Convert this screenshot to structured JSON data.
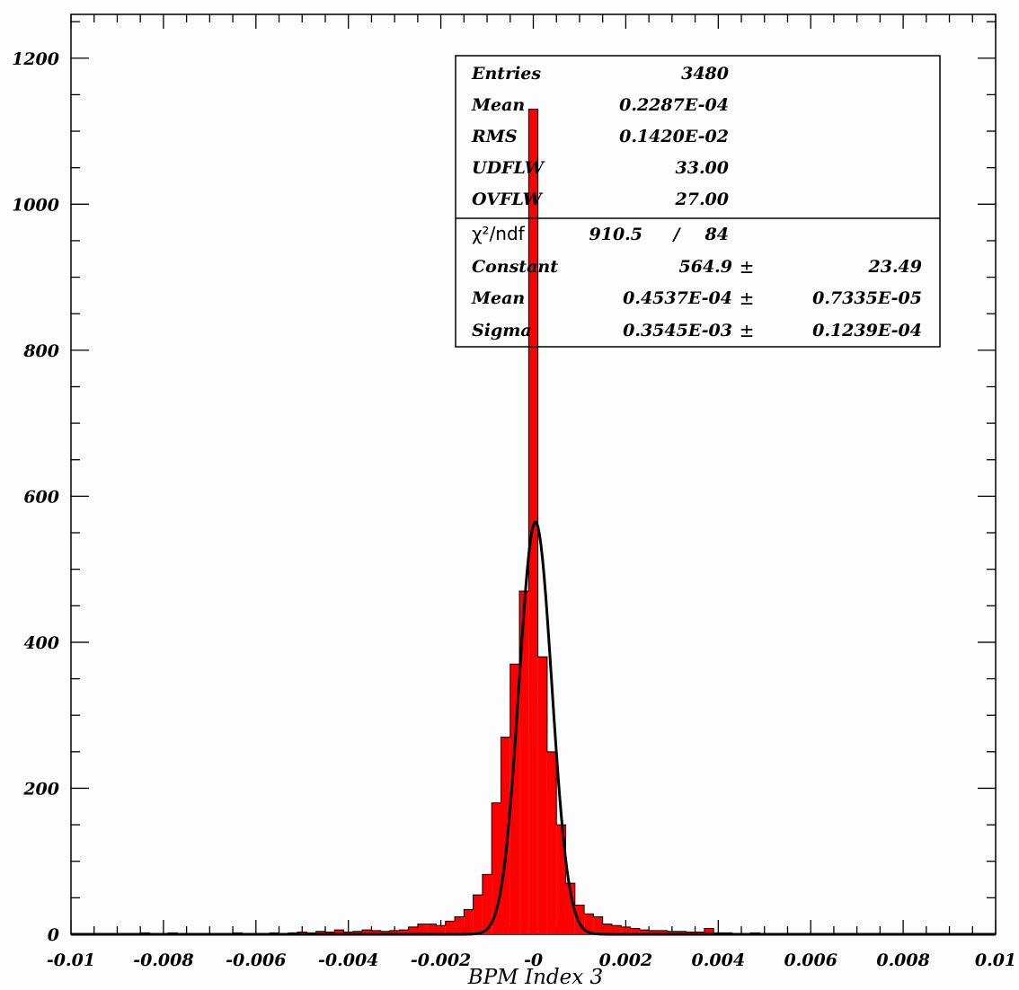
{
  "chart_data": {
    "type": "bar",
    "xlabel": "BPM Index 3",
    "ylabel": "",
    "xlim": [
      -0.01,
      0.01
    ],
    "ylim": [
      0,
      1260
    ],
    "x_ticks": [
      {
        "value": -0.01,
        "label": "-0.01"
      },
      {
        "value": -0.008,
        "label": "-0.008"
      },
      {
        "value": -0.006,
        "label": "-0.006"
      },
      {
        "value": -0.004,
        "label": "-0.004"
      },
      {
        "value": -0.002,
        "label": "-0.002"
      },
      {
        "value": 0,
        "label": "-0"
      },
      {
        "value": 0.002,
        "label": "0.002"
      },
      {
        "value": 0.004,
        "label": "0.004"
      },
      {
        "value": 0.006,
        "label": "0.006"
      },
      {
        "value": 0.008,
        "label": "0.008"
      },
      {
        "value": 0.01,
        "label": "0.01"
      }
    ],
    "y_ticks": [
      {
        "value": 0,
        "label": "0"
      },
      {
        "value": 200,
        "label": "200"
      },
      {
        "value": 400,
        "label": "400"
      },
      {
        "value": 600,
        "label": "600"
      },
      {
        "value": 800,
        "label": "800"
      },
      {
        "value": 1000,
        "label": "1000"
      },
      {
        "value": 1200,
        "label": "1200"
      }
    ],
    "bin_width": 0.0002,
    "bins_x": [
      -0.0098,
      -0.0096,
      -0.0094,
      -0.0092,
      -0.009,
      -0.0088,
      -0.0086,
      -0.0084,
      -0.0082,
      -0.008,
      -0.0078,
      -0.0076,
      -0.0074,
      -0.0072,
      -0.007,
      -0.0068,
      -0.0066,
      -0.0064,
      -0.0062,
      -0.006,
      -0.0058,
      -0.0056,
      -0.0054,
      -0.0052,
      -0.005,
      -0.0048,
      -0.0046,
      -0.0044,
      -0.0042,
      -0.004,
      -0.0038,
      -0.0036,
      -0.0034,
      -0.0032,
      -0.003,
      -0.0028,
      -0.0026,
      -0.0024,
      -0.0022,
      -0.002,
      -0.0018,
      -0.0016,
      -0.0014,
      -0.0012,
      -0.001,
      -0.0008,
      -0.0006,
      -0.0004,
      -0.0002,
      0,
      0.0002,
      0.0004,
      0.0006,
      0.0008,
      0.001,
      0.0012,
      0.0014,
      0.0016,
      0.0018,
      0.002,
      0.0022,
      0.0024,
      0.0026,
      0.0028,
      0.003,
      0.0032,
      0.0034,
      0.0036,
      0.0038,
      0.004,
      0.0042,
      0.0044,
      0.0046,
      0.0048,
      0.005,
      0.0052,
      0.0054,
      0.0056,
      0.0058,
      0.006,
      0.0062,
      0.0064,
      0.0066,
      0.0068,
      0.007,
      0.0072,
      0.0074,
      0.0076,
      0.0078,
      0.008,
      0.0082,
      0.0084,
      0.0086,
      0.0088,
      0.009,
      0.0092,
      0.0094,
      0.0096,
      0.0098
    ],
    "bins_y": [
      1,
      0,
      1,
      0,
      0,
      1,
      0,
      2,
      0,
      1,
      2,
      0,
      1,
      1,
      0,
      1,
      0,
      2,
      1,
      1,
      0,
      2,
      1,
      2,
      3,
      2,
      4,
      3,
      6,
      3,
      4,
      6,
      5,
      4,
      5,
      6,
      10,
      14,
      14,
      12,
      18,
      24,
      34,
      54,
      82,
      180,
      270,
      370,
      470,
      1130,
      380,
      250,
      150,
      70,
      40,
      28,
      24,
      14,
      12,
      10,
      8,
      6,
      5,
      5,
      4,
      4,
      3,
      3,
      8,
      2,
      2,
      1,
      1,
      2,
      1,
      1,
      0,
      1,
      0,
      1,
      1,
      0,
      0,
      1,
      0,
      1,
      0,
      0,
      1,
      0,
      0,
      1,
      0,
      0,
      0,
      1,
      0,
      0,
      1
    ],
    "series": [
      {
        "name": "",
        "type": "histogram",
        "color": "#ff0000",
        "edge_color": "#000000"
      },
      {
        "name": "",
        "type": "gaussian-fit",
        "color": "#000000"
      }
    ],
    "fit": {
      "constant": 564.9,
      "mean": 4.537e-05,
      "sigma": 0.0003545
    }
  },
  "stats_box": {
    "rows": [
      {
        "label": "Entries",
        "value": "3480"
      },
      {
        "label": "Mean",
        "value": "0.2287E-04"
      },
      {
        "label": "RMS",
        "value": "0.1420E-02"
      },
      {
        "label": "UDFLW",
        "value": "33.00"
      },
      {
        "label": "OVFLW",
        "value": "27.00"
      }
    ],
    "chi2_label": "χ²/ndf",
    "chi2_value": "910.5",
    "chi2_sep": "/",
    "ndf_value": "84",
    "fit_rows": [
      {
        "label": "Constant",
        "value": "564.9",
        "pm": "±",
        "error": "23.49"
      },
      {
        "label": "Mean",
        "value": "0.4537E-04",
        "pm": "±",
        "error": "0.7335E-05"
      },
      {
        "label": "Sigma",
        "value": "0.3545E-03",
        "pm": "±",
        "error": "0.1239E-04"
      }
    ]
  }
}
